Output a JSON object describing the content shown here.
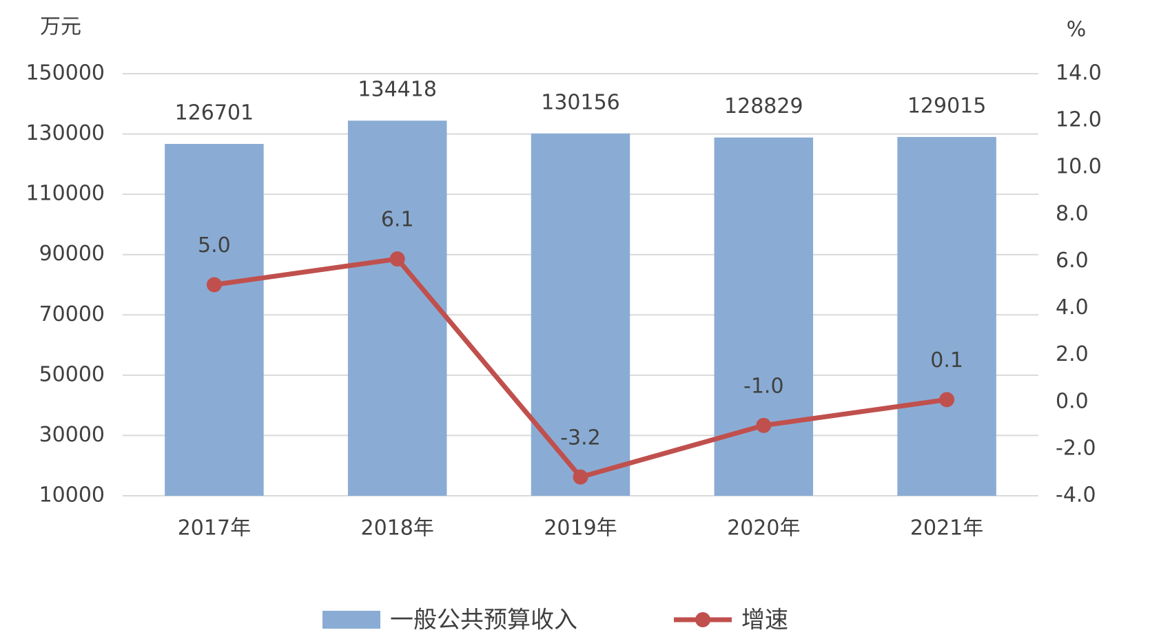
{
  "chart_data": {
    "type": "bar",
    "y_unit": "万元",
    "y2_unit": "%",
    "categories": [
      "2017年",
      "2018年",
      "2019年",
      "2020年",
      "2021年"
    ],
    "series": [
      {
        "name": "一般公共预算收入",
        "type": "bar",
        "color": "#8aacd4",
        "values": [
          126701,
          134418,
          130156,
          128829,
          129015
        ]
      },
      {
        "name": "增速",
        "type": "line",
        "axis": "y2",
        "color": "#c0504d",
        "values": [
          5.0,
          6.1,
          -3.2,
          -1.0,
          0.1
        ],
        "value_labels": [
          "5.0",
          "6.1",
          "-3.2",
          "-1.0",
          "0.1"
        ]
      }
    ],
    "ylim": [
      10000,
      150000
    ],
    "yticks": [
      10000,
      30000,
      50000,
      70000,
      90000,
      110000,
      130000,
      150000
    ],
    "y2lim": [
      -4,
      14
    ],
    "y2ticks": [
      {
        "value": -4,
        "label": "-4.0"
      },
      {
        "value": -2,
        "label": "-2.0"
      },
      {
        "value": 0,
        "label": "0.0"
      },
      {
        "value": 2,
        "label": "2.0"
      },
      {
        "value": 4,
        "label": "4.0"
      },
      {
        "value": 6,
        "label": "6.0"
      },
      {
        "value": 8,
        "label": "8.0"
      },
      {
        "value": 10,
        "label": "10.0"
      },
      {
        "value": 12,
        "label": "12.0"
      },
      {
        "value": 14,
        "label": "14.0"
      }
    ],
    "grid": true,
    "legend": "bottom"
  }
}
